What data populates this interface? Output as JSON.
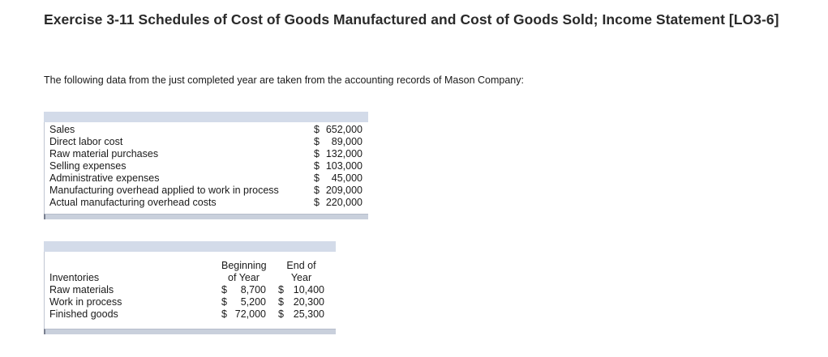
{
  "title": "Exercise 3-11 Schedules of Cost of Goods Manufactured and Cost of Goods Sold; Income Statement [LO3-6]",
  "intro": "The following data from the just completed year are taken from the accounting records of Mason Company:",
  "accounts": {
    "rows": [
      {
        "label": "Sales",
        "currency": "$",
        "amount": "652,000"
      },
      {
        "label": "Direct labor cost",
        "currency": "$",
        "amount": "89,000"
      },
      {
        "label": "Raw material purchases",
        "currency": "$",
        "amount": "132,000"
      },
      {
        "label": "Selling expenses",
        "currency": "$",
        "amount": "103,000"
      },
      {
        "label": "Administrative expenses",
        "currency": "$",
        "amount": "45,000"
      },
      {
        "label": "Manufacturing overhead applied to work in process",
        "currency": "$",
        "amount": "209,000"
      },
      {
        "label": "Actual manufacturing overhead costs",
        "currency": "$",
        "amount": "220,000"
      }
    ]
  },
  "inventories": {
    "header": {
      "label": "Inventories",
      "beginning_line1": "Beginning",
      "beginning_line2": "of Year",
      "end_line1": "End of",
      "end_line2": "Year"
    },
    "rows": [
      {
        "label": "Raw materials",
        "currency": "$",
        "beginning": "8,700",
        "end": "10,400"
      },
      {
        "label": "Work in process",
        "currency": "$",
        "beginning": "5,200",
        "end": "20,300"
      },
      {
        "label": "Finished goods",
        "currency": "$",
        "beginning": "72,000",
        "end": "25,300"
      }
    ]
  }
}
